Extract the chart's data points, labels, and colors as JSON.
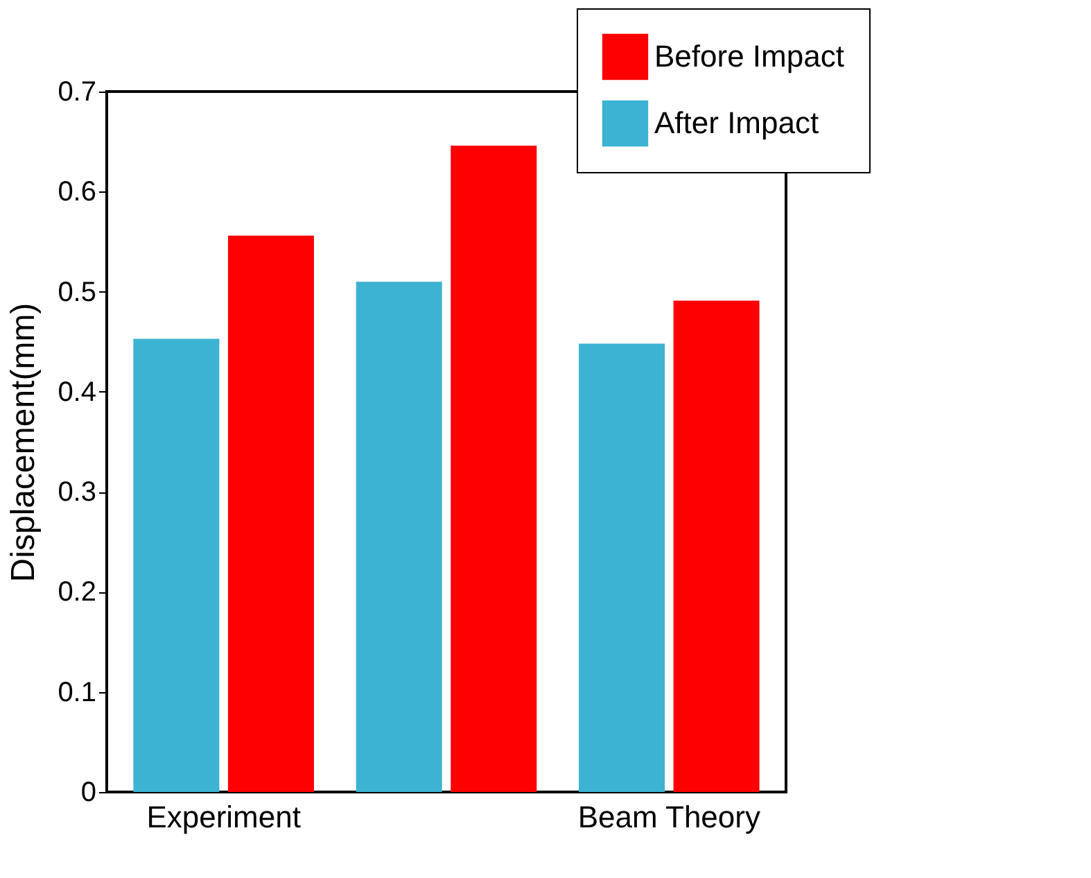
{
  "chart_data": {
    "type": "bar",
    "categories": [
      "Experiment",
      null,
      "Beam Theory"
    ],
    "ylabel": "Displacement(mm)",
    "ylim": [
      0,
      0.7
    ],
    "yticks": [
      0,
      0.1,
      0.2,
      0.3,
      0.4,
      0.5,
      0.6,
      0.7
    ],
    "series": [
      {
        "name": "After Impact",
        "color": "#3db3d4",
        "values": [
          0.453,
          0.51,
          0.448
        ]
      },
      {
        "name": "Before Impact",
        "color": "#ff0000",
        "values": [
          0.556,
          0.646,
          0.491
        ]
      }
    ],
    "legend": "top right",
    "grid": false
  }
}
